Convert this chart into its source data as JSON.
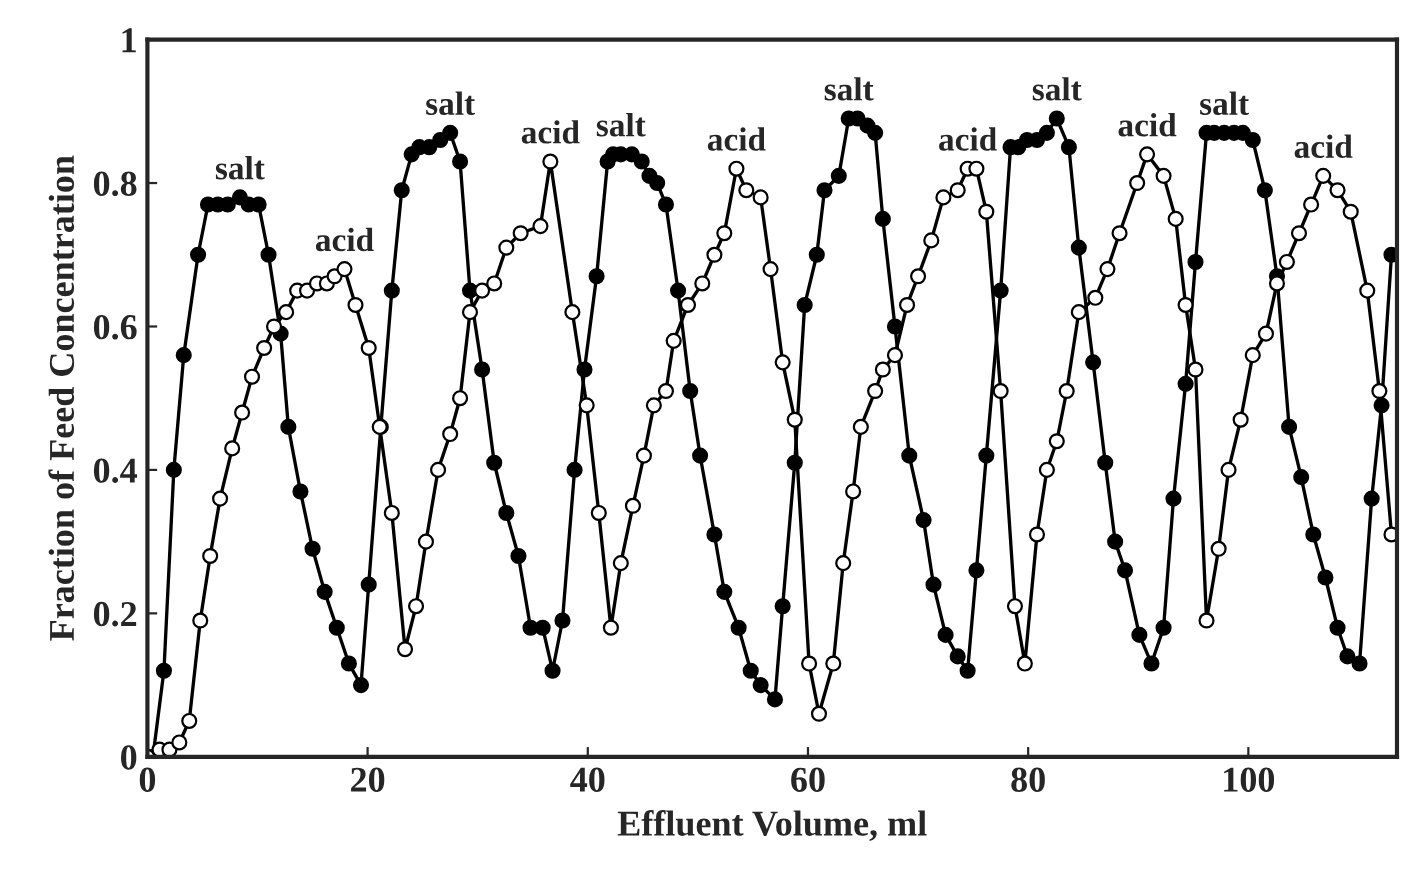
{
  "chart_data": {
    "type": "line",
    "xlabel": "Effluent Volume, ml",
    "ylabel": "Fraction of Feed Concentration",
    "xlim": [
      0,
      113.5
    ],
    "ylim": [
      0,
      1
    ],
    "xticks": [
      0,
      20,
      40,
      60,
      80,
      100
    ],
    "yticks": [
      0,
      0.2,
      0.4,
      0.6,
      0.8,
      1
    ],
    "marker": "circle",
    "line_style": "solid",
    "grid": false,
    "legend": false,
    "series": [
      {
        "color": "#000000",
        "x": [
          0.5,
          1.5,
          2.4,
          3.3,
          4.6,
          5.5,
          6.4,
          7.3,
          8.4,
          9.2,
          10.1,
          11.0,
          12.1,
          12.8,
          13.9,
          15.0,
          16.1,
          17.2,
          18.3,
          19.4,
          20.1,
          21.2,
          22.2,
          23.1,
          24.0,
          24.7,
          25.6,
          26.6,
          27.5,
          28.4,
          29.3,
          30.4,
          31.5,
          32.6,
          33.7,
          34.8,
          35.9,
          36.8,
          37.7,
          38.8,
          39.7,
          40.8,
          41.8,
          42.3,
          43.0,
          44.0,
          44.9,
          45.6,
          46.3,
          47.1,
          48.2,
          49.3,
          50.2,
          51.5,
          52.4,
          53.7,
          54.8,
          55.7,
          57.0,
          57.7,
          58.8,
          59.7,
          60.8,
          61.5,
          62.8,
          63.7,
          64.5,
          65.4,
          66.1,
          66.8,
          67.9,
          69.2,
          70.5,
          71.4,
          72.5,
          73.6,
          74.5,
          75.3,
          76.2,
          77.5,
          78.4,
          79.1,
          79.9,
          80.8,
          81.7,
          82.6,
          83.7,
          84.6,
          85.9,
          87.0,
          87.9,
          88.8,
          90.1,
          91.2,
          92.3,
          93.2,
          94.3,
          95.2,
          96.2,
          96.9,
          97.8,
          98.7,
          99.5,
          100.4,
          101.5,
          102.6,
          103.7,
          104.8,
          105.9,
          107.0,
          108.1,
          109.0,
          110.1,
          111.2,
          112.1,
          113.0
        ],
        "values": [
          0.0,
          0.12,
          0.4,
          0.56,
          0.7,
          0.77,
          0.77,
          0.77,
          0.78,
          0.77,
          0.77,
          0.7,
          0.59,
          0.46,
          0.37,
          0.29,
          0.23,
          0.18,
          0.13,
          0.1,
          0.24,
          0.46,
          0.65,
          0.79,
          0.84,
          0.85,
          0.85,
          0.86,
          0.87,
          0.83,
          0.65,
          0.54,
          0.41,
          0.34,
          0.28,
          0.18,
          0.18,
          0.12,
          0.19,
          0.4,
          0.54,
          0.67,
          0.83,
          0.84,
          0.84,
          0.84,
          0.83,
          0.81,
          0.8,
          0.77,
          0.65,
          0.51,
          0.42,
          0.31,
          0.23,
          0.18,
          0.12,
          0.1,
          0.08,
          0.21,
          0.41,
          0.63,
          0.7,
          0.79,
          0.81,
          0.89,
          0.89,
          0.88,
          0.87,
          0.75,
          0.6,
          0.42,
          0.33,
          0.24,
          0.17,
          0.14,
          0.12,
          0.26,
          0.42,
          0.65,
          0.85,
          0.85,
          0.86,
          0.86,
          0.87,
          0.89,
          0.85,
          0.71,
          0.55,
          0.41,
          0.3,
          0.26,
          0.17,
          0.13,
          0.18,
          0.36,
          0.52,
          0.69,
          0.87,
          0.87,
          0.87,
          0.87,
          0.87,
          0.86,
          0.79,
          0.67,
          0.46,
          0.39,
          0.31,
          0.25,
          0.18,
          0.14,
          0.13,
          0.36,
          0.49,
          0.7
        ]
      },
      {
        "color": "#000000",
        "x": [
          0,
          1.1,
          2.0,
          2.9,
          3.8,
          4.8,
          5.7,
          6.6,
          7.7,
          8.6,
          9.5,
          10.6,
          11.5,
          12.6,
          13.6,
          14.5,
          15.4,
          16.3,
          17.0,
          17.9,
          18.9,
          20.1,
          21.1,
          22.2,
          23.4,
          24.4,
          25.3,
          26.4,
          27.5,
          28.4,
          29.3,
          30.4,
          31.5,
          32.6,
          33.9,
          35.7,
          36.6,
          38.6,
          39.9,
          41.0,
          42.1,
          43.0,
          44.1,
          45.1,
          46.0,
          47.1,
          47.8,
          49.1,
          50.4,
          51.5,
          52.4,
          53.5,
          54.4,
          55.7,
          56.6,
          57.7,
          58.8,
          60.1,
          61.0,
          62.3,
          63.2,
          64.1,
          64.8,
          66.1,
          66.8,
          67.9,
          69.0,
          70.0,
          71.2,
          72.3,
          73.6,
          74.5,
          75.3,
          76.2,
          77.5,
          78.8,
          79.7,
          80.8,
          81.7,
          82.6,
          83.5,
          84.6,
          86.1,
          87.2,
          88.3,
          89.9,
          90.8,
          92.3,
          93.4,
          94.3,
          95.2,
          96.2,
          97.3,
          98.2,
          99.3,
          100.4,
          101.6,
          102.6,
          103.5,
          104.6,
          105.7,
          106.8,
          108.1,
          109.3,
          110.8,
          111.9,
          113.0
        ],
        "values": [
          0.0,
          0.01,
          0.01,
          0.02,
          0.05,
          0.19,
          0.28,
          0.36,
          0.43,
          0.48,
          0.53,
          0.57,
          0.6,
          0.62,
          0.65,
          0.65,
          0.66,
          0.66,
          0.67,
          0.68,
          0.63,
          0.57,
          0.46,
          0.34,
          0.15,
          0.21,
          0.3,
          0.4,
          0.45,
          0.5,
          0.62,
          0.65,
          0.66,
          0.71,
          0.73,
          0.74,
          0.83,
          0.62,
          0.49,
          0.34,
          0.18,
          0.27,
          0.35,
          0.42,
          0.49,
          0.51,
          0.58,
          0.63,
          0.66,
          0.7,
          0.73,
          0.82,
          0.79,
          0.78,
          0.68,
          0.55,
          0.47,
          0.13,
          0.06,
          0.13,
          0.27,
          0.37,
          0.46,
          0.51,
          0.54,
          0.56,
          0.63,
          0.67,
          0.72,
          0.78,
          0.79,
          0.82,
          0.82,
          0.76,
          0.51,
          0.21,
          0.13,
          0.31,
          0.4,
          0.44,
          0.51,
          0.62,
          0.64,
          0.68,
          0.73,
          0.8,
          0.84,
          0.81,
          0.75,
          0.63,
          0.54,
          0.19,
          0.29,
          0.4,
          0.47,
          0.56,
          0.59,
          0.66,
          0.69,
          0.73,
          0.77,
          0.81,
          0.79,
          0.76,
          0.65,
          0.51,
          0.31
        ]
      }
    ],
    "annotations": [
      {
        "text": "salt",
        "x": 8.4,
        "y": 0.78
      },
      {
        "text": "acid",
        "x": 17.9,
        "y": 0.68
      },
      {
        "text": "salt",
        "x": 27.5,
        "y": 0.87
      },
      {
        "text": "acid",
        "x": 36.6,
        "y": 0.83
      },
      {
        "text": "salt",
        "x": 43.0,
        "y": 0.84
      },
      {
        "text": "acid",
        "x": 53.5,
        "y": 0.82
      },
      {
        "text": "salt",
        "x": 63.7,
        "y": 0.89
      },
      {
        "text": "acid",
        "x": 74.5,
        "y": 0.82
      },
      {
        "text": "salt",
        "x": 82.6,
        "y": 0.89
      },
      {
        "text": "acid",
        "x": 90.8,
        "y": 0.84
      },
      {
        "text": "salt",
        "x": 97.8,
        "y": 0.87
      },
      {
        "text": "acid",
        "x": 106.8,
        "y": 0.81
      }
    ]
  }
}
